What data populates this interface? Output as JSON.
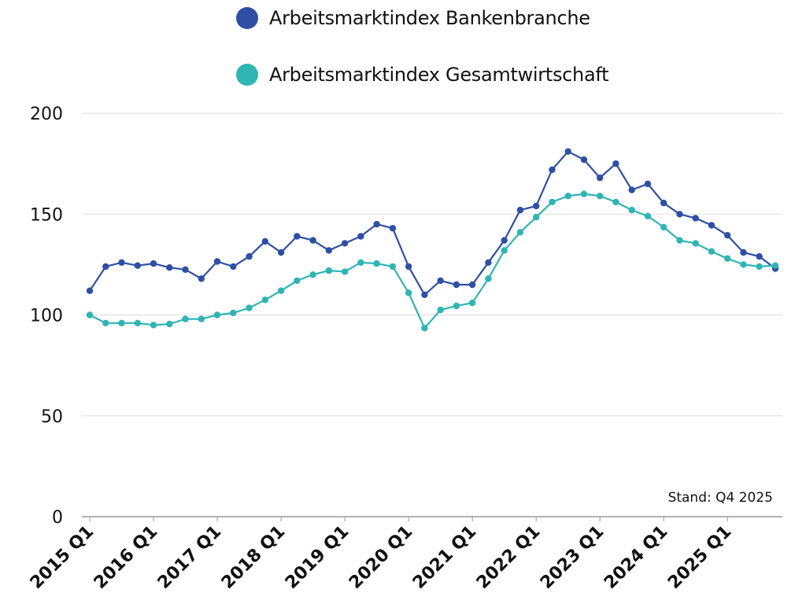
{
  "chart_data": {
    "type": "line",
    "title": "",
    "xlabel": "",
    "ylabel": "",
    "ylim": [
      0,
      200
    ],
    "yticks": [
      0,
      50,
      100,
      150,
      200
    ],
    "grid": true,
    "legend_position": "top",
    "note": "Stand: Q4 2025",
    "x": [
      "2015 Q1",
      "2015 Q2",
      "2015 Q3",
      "2015 Q4",
      "2016 Q1",
      "2016 Q2",
      "2016 Q3",
      "2016 Q4",
      "2017 Q1",
      "2017 Q2",
      "2017 Q3",
      "2017 Q4",
      "2018 Q1",
      "2018 Q2",
      "2018 Q3",
      "2018 Q4",
      "2019 Q1",
      "2019 Q2",
      "2019 Q3",
      "2019 Q4",
      "2020 Q1",
      "2020 Q2",
      "2020 Q3",
      "2020 Q4",
      "2021 Q1",
      "2021 Q2",
      "2021 Q3",
      "2021 Q4",
      "2022 Q1",
      "2022 Q2",
      "2022 Q3",
      "2022 Q4",
      "2023 Q1",
      "2023 Q2",
      "2023 Q3",
      "2023 Q4",
      "2024 Q1",
      "2024 Q2",
      "2024 Q3",
      "2024 Q4",
      "2025 Q1",
      "2025 Q2",
      "2025 Q3",
      "2025 Q4"
    ],
    "xtick_labels": [
      "2015 Q1",
      "2016 Q1",
      "2017 Q1",
      "2018 Q1",
      "2019 Q1",
      "2020 Q1",
      "2021 Q1",
      "2022 Q1",
      "2023 Q1",
      "2024 Q1",
      "2025 Q1"
    ],
    "series": [
      {
        "name": "Arbeitsmarktindex Bankenbranche",
        "color": "#2e4fa3",
        "values": [
          112,
          124,
          126,
          124.5,
          125.5,
          123.5,
          122.5,
          118,
          126.5,
          124,
          129,
          136.5,
          131,
          139,
          137,
          132,
          135.5,
          139,
          145,
          143,
          124,
          110,
          117,
          115,
          115,
          126,
          137,
          152,
          154,
          172,
          181,
          177,
          168,
          175,
          162,
          165,
          155.5,
          150,
          148,
          144.5,
          139.5,
          131,
          129,
          123
        ]
      },
      {
        "name": "Arbeitsmarktindex Gesamtwirtschaft",
        "color": "#2fb5b3",
        "values": [
          100,
          96,
          96,
          96,
          95,
          95.5,
          98,
          98,
          100,
          101,
          103.5,
          107.5,
          112,
          117,
          120,
          122,
          121.5,
          126,
          125.5,
          124,
          111,
          93.5,
          102.5,
          104.5,
          106,
          118,
          132,
          141,
          148.5,
          156,
          159,
          160,
          159,
          156,
          152,
          149,
          143.5,
          137,
          135.5,
          131.5,
          128,
          125,
          124,
          124.5
        ]
      }
    ]
  }
}
